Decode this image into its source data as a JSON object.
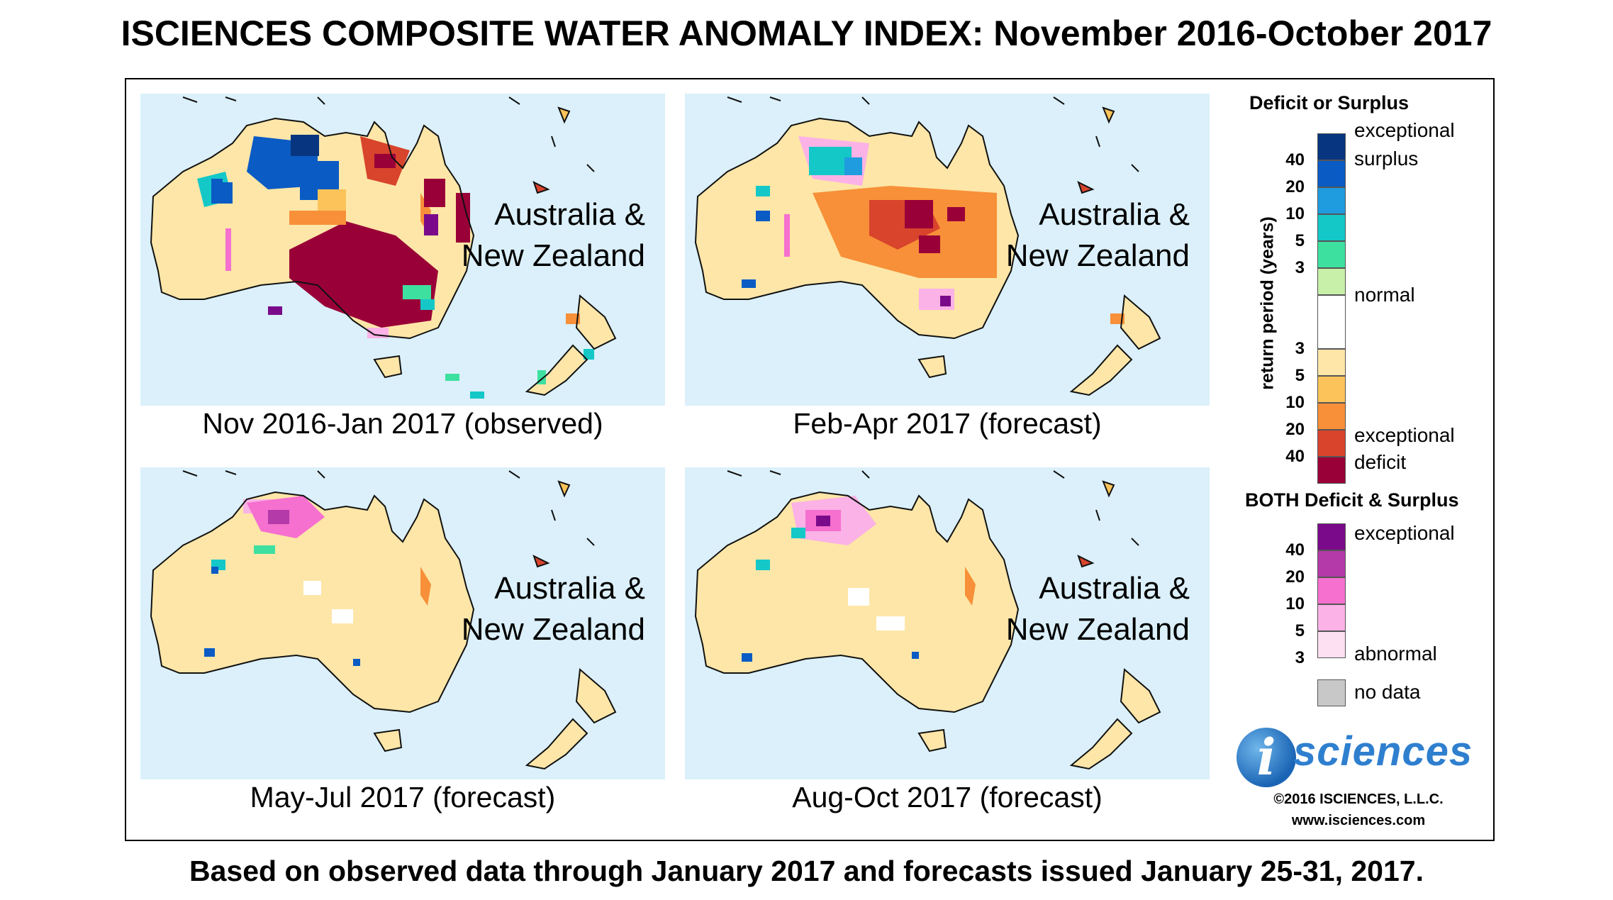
{
  "title": "ISCIENCES COMPOSITE WATER ANOMALY INDEX: November 2016-October 2017",
  "footer": "Based on observed data through January 2017 and forecasts issued January 25-31, 2017.",
  "region_label_line1": "Australia &",
  "region_label_line2": "New Zealand",
  "panels": [
    {
      "caption": "Nov 2016-Jan 2017 (observed)"
    },
    {
      "caption": "Feb-Apr 2017 (forecast)"
    },
    {
      "caption": "May-Jul 2017 (forecast)"
    },
    {
      "caption": "Aug-Oct 2017 (forecast)"
    }
  ],
  "legend": {
    "deficit_surplus_heading": "Deficit or Surplus",
    "axis_title": "return period (years)",
    "label_exceptional": "exceptional",
    "label_surplus": "surplus",
    "label_normal": "normal",
    "label_deficit": "deficit",
    "surplus_ticks": [
      "40",
      "20",
      "10",
      "5",
      "3"
    ],
    "deficit_ticks": [
      "3",
      "5",
      "10",
      "20",
      "40"
    ],
    "both_heading": "BOTH Deficit & Surplus",
    "both_ticks": [
      "40",
      "20",
      "10",
      "5",
      "3"
    ],
    "label_abnormal": "abnormal",
    "label_no_data": "no data",
    "colors": {
      "surplus": [
        "#08357f",
        "#0a5bc4",
        "#1f9be0",
        "#14c8c8",
        "#3ee0a0",
        "#c8f0a8"
      ],
      "normal": "#ffffff",
      "deficit": [
        "#fde6a8",
        "#fbc35a",
        "#f79038",
        "#d8442c",
        "#9a0038"
      ],
      "both": [
        "#7a0a8a",
        "#b33aa8",
        "#f570cf",
        "#fbb2e6",
        "#fde0f2"
      ],
      "no_data": "#c8c8c8",
      "ocean": "#dbf0fa"
    }
  },
  "logo": {
    "letter": "i",
    "text": "sciences"
  },
  "copyright": "©2016 ISCIENCES, L.L.C.",
  "website": "www.isciences.com"
}
